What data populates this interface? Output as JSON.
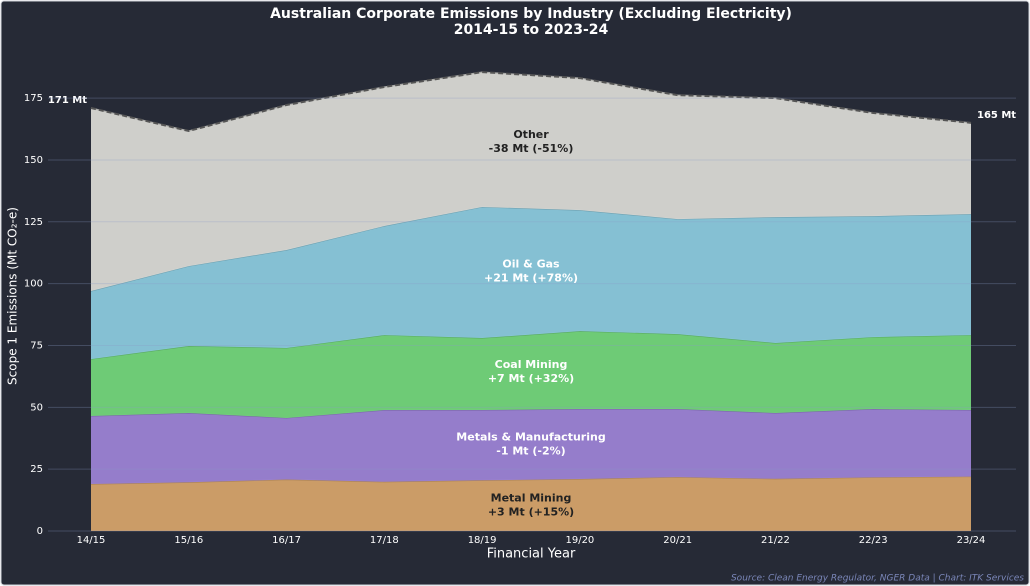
{
  "chart_data": {
    "type": "stacked_area",
    "title": "Australian Corporate Emissions by Industry (Excluding Electricity)",
    "subtitle": "2014-15 to 2023-24",
    "x_label": "Financial Year",
    "y_label": "Scope 1 Emissions (Mt CO₂-e)",
    "categories": [
      "14/15",
      "15/16",
      "16/17",
      "17/18",
      "18/19",
      "19/20",
      "20/21",
      "21/22",
      "22/23",
      "23/24"
    ],
    "series": [
      {
        "name": "Metal Mining",
        "change_label": "+3 Mt (+15%)",
        "color": "#d4a26a",
        "label_color": "#222222",
        "values": [
          19,
          19.7,
          20.8,
          19.9,
          20.5,
          21,
          21.8,
          21.1,
          21.7,
          22
        ]
      },
      {
        "name": "Metals & Manufacturing",
        "change_label": "-1 Mt (-2%)",
        "color": "#9b82d4",
        "label_color": "#ffffff",
        "values": [
          27.5,
          28,
          24.9,
          29,
          28.4,
          28.3,
          27.5,
          26.6,
          27.6,
          26.9
        ]
      },
      {
        "name": "Coal Mining",
        "change_label": "+7 Mt (+32%)",
        "color": "#72d47a",
        "label_color": "#ffffff",
        "values": [
          23,
          27.1,
          28.3,
          30.3,
          29.1,
          31.5,
          30.3,
          28.3,
          29.1,
          30.3
        ]
      },
      {
        "name": "Oil & Gas",
        "change_label": "+21 Mt (+78%)",
        "color": "#8ac8dc",
        "label_color": "#ffffff",
        "values": [
          27.5,
          32.3,
          39.6,
          44.1,
          53,
          48.9,
          46.5,
          50.9,
          48.9,
          48.9
        ]
      },
      {
        "name": "Other",
        "change_label": "-38 Mt (-51%)",
        "color": "#d8d8d4",
        "label_color": "#222222",
        "values": [
          74,
          54.6,
          58.6,
          56.2,
          54.5,
          53.4,
          50.1,
          48.1,
          41.7,
          36.9
        ]
      }
    ],
    "start_label": "171 Mt",
    "end_label": "165 Mt",
    "ylim": [
      0,
      190
    ],
    "yticks": [
      0,
      25,
      50,
      75,
      100,
      125,
      150,
      175
    ],
    "grid": true,
    "source": "Source: Clean Energy Regulator, NGER Data | Chart: ITK Services"
  }
}
